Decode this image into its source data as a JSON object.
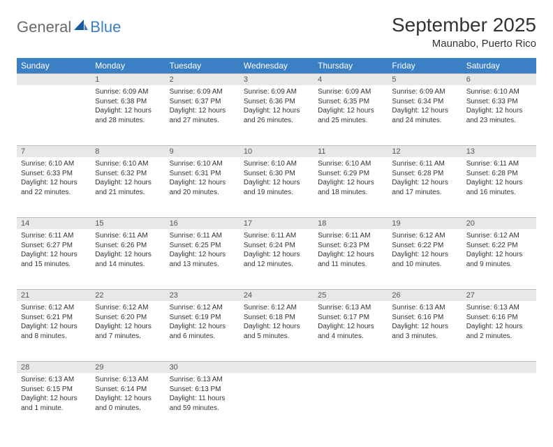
{
  "logo": {
    "part1": "General",
    "part2": "Blue"
  },
  "title": "September 2025",
  "location": "Maunabo, Puerto Rico",
  "colors": {
    "header_bg": "#3b7fc4",
    "header_text": "#ffffff",
    "daynum_bg": "#e8e8e8",
    "daynum_border": "#bbbbbb",
    "body_text": "#333333",
    "logo_gray": "#6a6a6a",
    "logo_blue": "#3b7fc4",
    "page_bg": "#ffffff"
  },
  "weekdays": [
    "Sunday",
    "Monday",
    "Tuesday",
    "Wednesday",
    "Thursday",
    "Friday",
    "Saturday"
  ],
  "weeks": [
    [
      null,
      {
        "n": "1",
        "sr": "Sunrise: 6:09 AM",
        "ss": "Sunset: 6:38 PM",
        "dl": "Daylight: 12 hours and 28 minutes."
      },
      {
        "n": "2",
        "sr": "Sunrise: 6:09 AM",
        "ss": "Sunset: 6:37 PM",
        "dl": "Daylight: 12 hours and 27 minutes."
      },
      {
        "n": "3",
        "sr": "Sunrise: 6:09 AM",
        "ss": "Sunset: 6:36 PM",
        "dl": "Daylight: 12 hours and 26 minutes."
      },
      {
        "n": "4",
        "sr": "Sunrise: 6:09 AM",
        "ss": "Sunset: 6:35 PM",
        "dl": "Daylight: 12 hours and 25 minutes."
      },
      {
        "n": "5",
        "sr": "Sunrise: 6:09 AM",
        "ss": "Sunset: 6:34 PM",
        "dl": "Daylight: 12 hours and 24 minutes."
      },
      {
        "n": "6",
        "sr": "Sunrise: 6:10 AM",
        "ss": "Sunset: 6:33 PM",
        "dl": "Daylight: 12 hours and 23 minutes."
      }
    ],
    [
      {
        "n": "7",
        "sr": "Sunrise: 6:10 AM",
        "ss": "Sunset: 6:33 PM",
        "dl": "Daylight: 12 hours and 22 minutes."
      },
      {
        "n": "8",
        "sr": "Sunrise: 6:10 AM",
        "ss": "Sunset: 6:32 PM",
        "dl": "Daylight: 12 hours and 21 minutes."
      },
      {
        "n": "9",
        "sr": "Sunrise: 6:10 AM",
        "ss": "Sunset: 6:31 PM",
        "dl": "Daylight: 12 hours and 20 minutes."
      },
      {
        "n": "10",
        "sr": "Sunrise: 6:10 AM",
        "ss": "Sunset: 6:30 PM",
        "dl": "Daylight: 12 hours and 19 minutes."
      },
      {
        "n": "11",
        "sr": "Sunrise: 6:10 AM",
        "ss": "Sunset: 6:29 PM",
        "dl": "Daylight: 12 hours and 18 minutes."
      },
      {
        "n": "12",
        "sr": "Sunrise: 6:11 AM",
        "ss": "Sunset: 6:28 PM",
        "dl": "Daylight: 12 hours and 17 minutes."
      },
      {
        "n": "13",
        "sr": "Sunrise: 6:11 AM",
        "ss": "Sunset: 6:28 PM",
        "dl": "Daylight: 12 hours and 16 minutes."
      }
    ],
    [
      {
        "n": "14",
        "sr": "Sunrise: 6:11 AM",
        "ss": "Sunset: 6:27 PM",
        "dl": "Daylight: 12 hours and 15 minutes."
      },
      {
        "n": "15",
        "sr": "Sunrise: 6:11 AM",
        "ss": "Sunset: 6:26 PM",
        "dl": "Daylight: 12 hours and 14 minutes."
      },
      {
        "n": "16",
        "sr": "Sunrise: 6:11 AM",
        "ss": "Sunset: 6:25 PM",
        "dl": "Daylight: 12 hours and 13 minutes."
      },
      {
        "n": "17",
        "sr": "Sunrise: 6:11 AM",
        "ss": "Sunset: 6:24 PM",
        "dl": "Daylight: 12 hours and 12 minutes."
      },
      {
        "n": "18",
        "sr": "Sunrise: 6:11 AM",
        "ss": "Sunset: 6:23 PM",
        "dl": "Daylight: 12 hours and 11 minutes."
      },
      {
        "n": "19",
        "sr": "Sunrise: 6:12 AM",
        "ss": "Sunset: 6:22 PM",
        "dl": "Daylight: 12 hours and 10 minutes."
      },
      {
        "n": "20",
        "sr": "Sunrise: 6:12 AM",
        "ss": "Sunset: 6:22 PM",
        "dl": "Daylight: 12 hours and 9 minutes."
      }
    ],
    [
      {
        "n": "21",
        "sr": "Sunrise: 6:12 AM",
        "ss": "Sunset: 6:21 PM",
        "dl": "Daylight: 12 hours and 8 minutes."
      },
      {
        "n": "22",
        "sr": "Sunrise: 6:12 AM",
        "ss": "Sunset: 6:20 PM",
        "dl": "Daylight: 12 hours and 7 minutes."
      },
      {
        "n": "23",
        "sr": "Sunrise: 6:12 AM",
        "ss": "Sunset: 6:19 PM",
        "dl": "Daylight: 12 hours and 6 minutes."
      },
      {
        "n": "24",
        "sr": "Sunrise: 6:12 AM",
        "ss": "Sunset: 6:18 PM",
        "dl": "Daylight: 12 hours and 5 minutes."
      },
      {
        "n": "25",
        "sr": "Sunrise: 6:13 AM",
        "ss": "Sunset: 6:17 PM",
        "dl": "Daylight: 12 hours and 4 minutes."
      },
      {
        "n": "26",
        "sr": "Sunrise: 6:13 AM",
        "ss": "Sunset: 6:16 PM",
        "dl": "Daylight: 12 hours and 3 minutes."
      },
      {
        "n": "27",
        "sr": "Sunrise: 6:13 AM",
        "ss": "Sunset: 6:16 PM",
        "dl": "Daylight: 12 hours and 2 minutes."
      }
    ],
    [
      {
        "n": "28",
        "sr": "Sunrise: 6:13 AM",
        "ss": "Sunset: 6:15 PM",
        "dl": "Daylight: 12 hours and 1 minute."
      },
      {
        "n": "29",
        "sr": "Sunrise: 6:13 AM",
        "ss": "Sunset: 6:14 PM",
        "dl": "Daylight: 12 hours and 0 minutes."
      },
      {
        "n": "30",
        "sr": "Sunrise: 6:13 AM",
        "ss": "Sunset: 6:13 PM",
        "dl": "Daylight: 11 hours and 59 minutes."
      },
      null,
      null,
      null,
      null
    ]
  ]
}
